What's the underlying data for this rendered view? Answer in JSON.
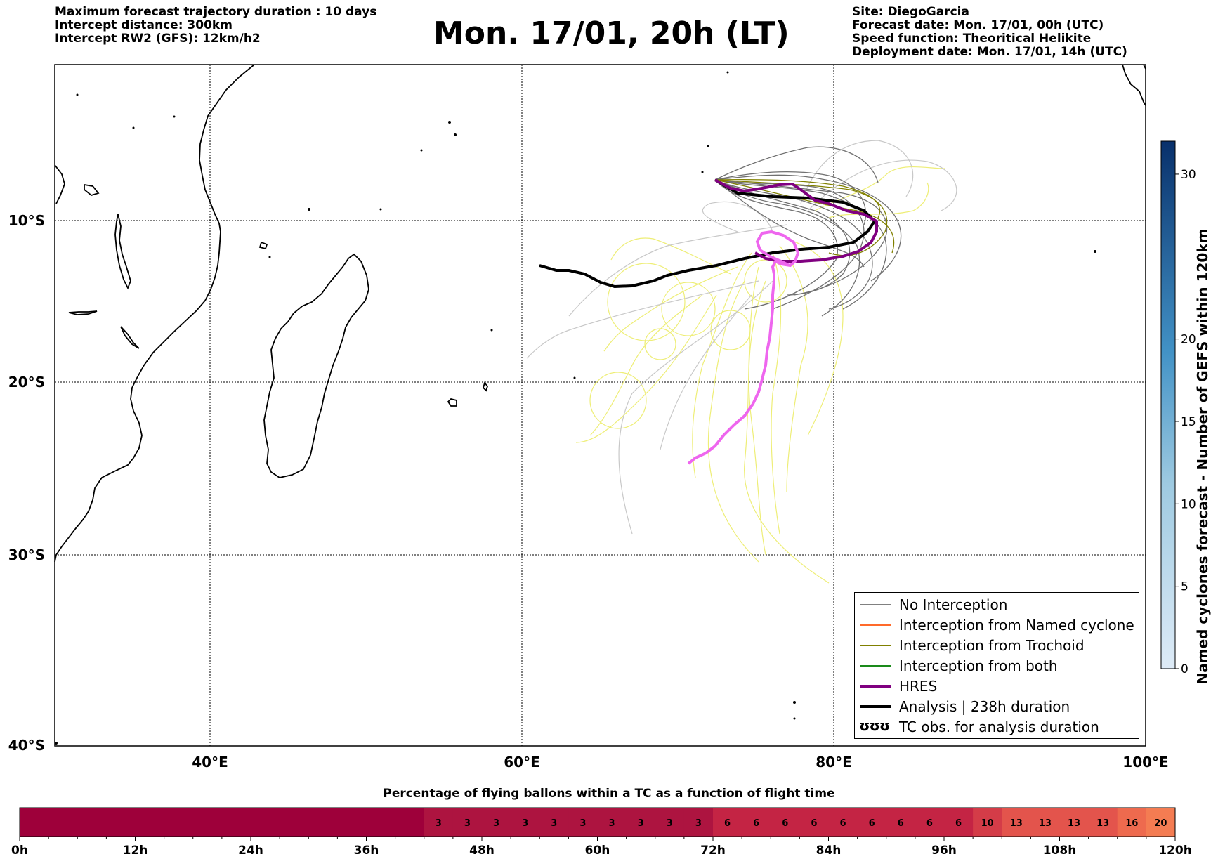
{
  "header_left": [
    "Maximum forecast trajectory duration : 10 days",
    "Intercept distance: 300km",
    "Intercept RW2 (GFS):  12km/h2"
  ],
  "title": "Mon. 17/01, 20h (LT)",
  "header_right": [
    "Site: DiegoGarcia",
    "Forecast date: Mon. 17/01, 00h (UTC)",
    "Speed function: Theoritical Helikite",
    "Deployment date: Mon. 17/01, 14h (UTC)"
  ],
  "map": {
    "lon_ticks": [
      "40°E",
      "60°E",
      "80°E",
      "100°E"
    ],
    "lat_ticks": [
      "10°S",
      "20°S",
      "30°S",
      "40°S"
    ]
  },
  "legend": [
    {
      "label": "No Interception",
      "color": "#808080"
    },
    {
      "label": "Interception from Named cyclone",
      "color": "#ff6a2a"
    },
    {
      "label": "Interception from Trochoid",
      "color": "#808000"
    },
    {
      "label": "Interception from both",
      "color": "#1a8a1a"
    },
    {
      "label": "HRES",
      "color": "#800080"
    },
    {
      "label": "Analysis | 238h duration",
      "color": "#000000"
    },
    {
      "label": "TC obs. for analysis duration",
      "symbol": "ʊʊʊ"
    }
  ],
  "colorbar": {
    "label": "Named cyclones forecast - Number of GEFS within 120km",
    "ticks": [
      "0",
      "5",
      "10",
      "15",
      "20",
      "30"
    ],
    "tick_values": [
      0,
      5,
      10,
      15,
      20,
      30
    ],
    "range": [
      0,
      32
    ]
  },
  "timebar": {
    "title": "Percentage of flying ballons within a TC as a function of flight time",
    "time_labels": [
      "0h",
      "12h",
      "24h",
      "36h",
      "48h",
      "60h",
      "72h",
      "84h",
      "96h",
      "108h",
      "120h"
    ],
    "cells": [
      "",
      "",
      "",
      "",
      "",
      "",
      "",
      "",
      "",
      "",
      "",
      "",
      "",
      "",
      "3",
      "3",
      "3",
      "3",
      "3",
      "3",
      "3",
      "3",
      "3",
      "3",
      "6",
      "6",
      "6",
      "6",
      "6",
      "6",
      "6",
      "6",
      "6",
      "10",
      "13",
      "13",
      "13",
      "13",
      "16",
      "20"
    ],
    "cell_values": [
      0,
      0,
      0,
      0,
      0,
      0,
      0,
      0,
      0,
      0,
      0,
      0,
      0,
      0,
      3,
      3,
      3,
      3,
      3,
      3,
      3,
      3,
      3,
      3,
      6,
      6,
      6,
      6,
      6,
      6,
      6,
      6,
      6,
      10,
      13,
      13,
      13,
      13,
      16,
      20
    ]
  }
}
